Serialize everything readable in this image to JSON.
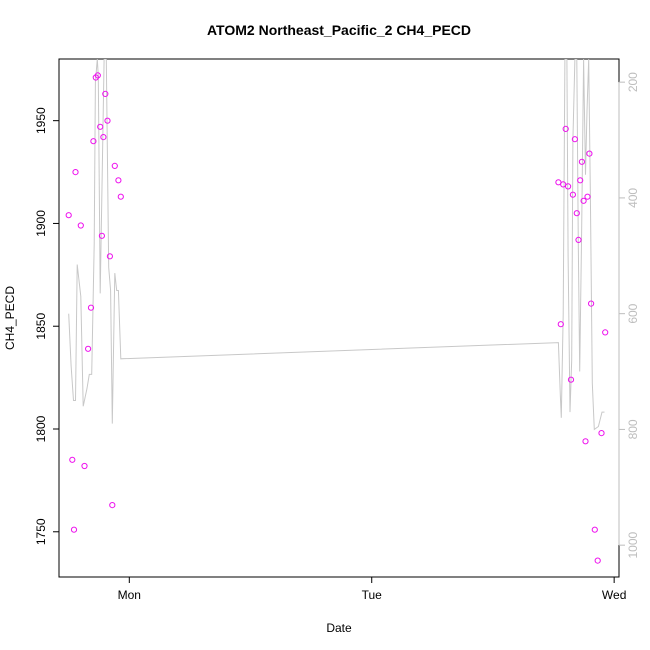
{
  "chart_data": {
    "type": "scatter",
    "title": "ATOM2 Northeast_Pacific_2 CH4_PECD",
    "xlabel": "Date",
    "ylabel": "CH4_PECD",
    "x_ticks": [
      "Mon",
      "Tue",
      "Wed"
    ],
    "y_ticks": [
      1750,
      1800,
      1850,
      1900,
      1950
    ],
    "y_right_ticks": [
      200,
      400,
      600,
      800,
      1000
    ],
    "xlim_days": [
      -0.29,
      2.02
    ],
    "ylim": [
      1728,
      1980
    ],
    "y_right_lim": [
      1055,
      160
    ],
    "y_right_reversed": true,
    "colors": {
      "points": "#ee11ee",
      "profile_line": "#c8c8c8",
      "right_axis": "#bdbdbd"
    },
    "series": [
      {
        "marker": "open-circle",
        "points": [
          {
            "x": -0.25,
            "y": 1904
          },
          {
            "x": -0.235,
            "y": 1785
          },
          {
            "x": -0.228,
            "y": 1751
          },
          {
            "x": -0.222,
            "y": 1925
          },
          {
            "x": -0.2,
            "y": 1899
          },
          {
            "x": -0.185,
            "y": 1782
          },
          {
            "x": -0.17,
            "y": 1839
          },
          {
            "x": -0.158,
            "y": 1859
          },
          {
            "x": -0.148,
            "y": 1940
          },
          {
            "x": -0.138,
            "y": 1971
          },
          {
            "x": -0.13,
            "y": 1972
          },
          {
            "x": -0.12,
            "y": 1947
          },
          {
            "x": -0.113,
            "y": 1894
          },
          {
            "x": -0.107,
            "y": 1942
          },
          {
            "x": -0.099,
            "y": 1963
          },
          {
            "x": -0.09,
            "y": 1950
          },
          {
            "x": -0.08,
            "y": 1884
          },
          {
            "x": -0.07,
            "y": 1763
          },
          {
            "x": -0.06,
            "y": 1928
          },
          {
            "x": -0.045,
            "y": 1921
          },
          {
            "x": -0.035,
            "y": 1913
          },
          {
            "x": 1.77,
            "y": 1920
          },
          {
            "x": 1.78,
            "y": 1851
          },
          {
            "x": 1.79,
            "y": 1919
          },
          {
            "x": 1.81,
            "y": 1918
          },
          {
            "x": 1.822,
            "y": 1824
          },
          {
            "x": 1.83,
            "y": 1914
          },
          {
            "x": 1.838,
            "y": 1941
          },
          {
            "x": 1.846,
            "y": 1905
          },
          {
            "x": 1.853,
            "y": 1892
          },
          {
            "x": 1.86,
            "y": 1921
          },
          {
            "x": 1.867,
            "y": 1930
          },
          {
            "x": 1.874,
            "y": 1911
          },
          {
            "x": 1.882,
            "y": 1794
          },
          {
            "x": 1.89,
            "y": 1913
          },
          {
            "x": 1.898,
            "y": 1934
          },
          {
            "x": 1.905,
            "y": 1861
          },
          {
            "x": 1.92,
            "y": 1751
          },
          {
            "x": 1.932,
            "y": 1736
          },
          {
            "x": 1.948,
            "y": 1798
          },
          {
            "x": 1.963,
            "y": 1847
          },
          {
            "x": 1.8,
            "y": 1946
          }
        ]
      },
      {
        "axis": "right",
        "style": "line",
        "points": [
          {
            "x": -0.25,
            "y": 600
          },
          {
            "x": -0.24,
            "y": 690
          },
          {
            "x": -0.23,
            "y": 750
          },
          {
            "x": -0.222,
            "y": 750
          },
          {
            "x": -0.215,
            "y": 515
          },
          {
            "x": -0.2,
            "y": 570
          },
          {
            "x": -0.19,
            "y": 760
          },
          {
            "x": -0.175,
            "y": 730
          },
          {
            "x": -0.165,
            "y": 705
          },
          {
            "x": -0.155,
            "y": 705
          },
          {
            "x": -0.145,
            "y": 480
          },
          {
            "x": -0.14,
            "y": 200
          },
          {
            "x": -0.132,
            "y": 160
          },
          {
            "x": -0.128,
            "y": 190
          },
          {
            "x": -0.12,
            "y": 565
          },
          {
            "x": -0.112,
            "y": 360
          },
          {
            "x": -0.104,
            "y": 160
          },
          {
            "x": -0.095,
            "y": 160
          },
          {
            "x": -0.085,
            "y": 520
          },
          {
            "x": -0.077,
            "y": 560
          },
          {
            "x": -0.07,
            "y": 790
          },
          {
            "x": -0.06,
            "y": 530
          },
          {
            "x": -0.052,
            "y": 560
          },
          {
            "x": -0.045,
            "y": 560
          },
          {
            "x": -0.035,
            "y": 678
          },
          {
            "x": 1.77,
            "y": 650
          },
          {
            "x": 1.778,
            "y": 740
          },
          {
            "x": 1.782,
            "y": 780
          },
          {
            "x": 1.79,
            "y": 600
          },
          {
            "x": 1.797,
            "y": 160
          },
          {
            "x": 1.805,
            "y": 160
          },
          {
            "x": 1.81,
            "y": 500
          },
          {
            "x": 1.818,
            "y": 770
          },
          {
            "x": 1.825,
            "y": 680
          },
          {
            "x": 1.83,
            "y": 300
          },
          {
            "x": 1.838,
            "y": 160
          },
          {
            "x": 1.846,
            "y": 160
          },
          {
            "x": 1.852,
            "y": 480
          },
          {
            "x": 1.858,
            "y": 700
          },
          {
            "x": 1.866,
            "y": 450
          },
          {
            "x": 1.874,
            "y": 160
          },
          {
            "x": 1.882,
            "y": 360
          },
          {
            "x": 1.888,
            "y": 250
          },
          {
            "x": 1.895,
            "y": 160
          },
          {
            "x": 1.902,
            "y": 400
          },
          {
            "x": 1.91,
            "y": 720
          },
          {
            "x": 1.918,
            "y": 800
          },
          {
            "x": 1.935,
            "y": 795
          },
          {
            "x": 1.95,
            "y": 770
          },
          {
            "x": 1.96,
            "y": 770
          }
        ]
      }
    ]
  }
}
